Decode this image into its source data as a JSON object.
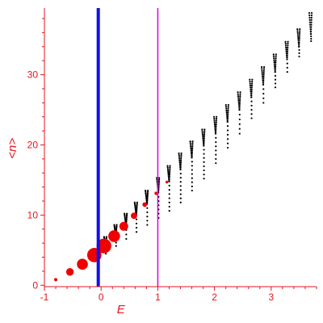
{
  "chart_data": {
    "type": "scatter",
    "xlabel": "E",
    "ylabel": "<n>",
    "xlim": [
      -1.0,
      3.8
    ],
    "ylim": [
      -0.2,
      39.5
    ],
    "x_ticks": [
      -1,
      0,
      1,
      2,
      3
    ],
    "x_tick_labels": [
      "-1",
      "0",
      "1",
      "2",
      "3"
    ],
    "y_ticks": [
      0,
      10,
      20,
      30
    ],
    "y_tick_labels": [
      "0",
      "10",
      "20",
      "30"
    ],
    "grid": false,
    "legend": "none",
    "vertical_lines": [
      {
        "x": -0.05,
        "color": "#1010e8",
        "style": "thick"
      },
      {
        "x": 1.0,
        "color": "#e000e0",
        "style": "thin"
      }
    ],
    "series": [
      {
        "marker": "filled-circle",
        "color": "#f00000",
        "points": [
          {
            "x": -0.8,
            "y": 0.8,
            "size": 1.0
          },
          {
            "x": -0.55,
            "y": 1.9,
            "size": 3.0
          },
          {
            "x": -0.33,
            "y": 3.0,
            "size": 4.6
          },
          {
            "x": -0.12,
            "y": 4.3,
            "size": 6.2
          },
          {
            "x": 0.05,
            "y": 5.6,
            "size": 6.4
          },
          {
            "x": 0.23,
            "y": 7.0,
            "size": 5.0
          },
          {
            "x": 0.4,
            "y": 8.4,
            "size": 3.6
          },
          {
            "x": 0.58,
            "y": 9.9,
            "size": 2.4
          },
          {
            "x": 0.77,
            "y": 11.5,
            "size": 1.6
          },
          {
            "x": 0.97,
            "y": 13.1,
            "size": 1.0
          },
          {
            "x": 1.16,
            "y": 14.7,
            "size": 0.7
          }
        ]
      }
    ],
    "dotted_branches": {
      "color": "#000000",
      "description": "V-shaped dotted families for successive levels",
      "levels": [
        {
          "center": 0.08,
          "mid": 5.6,
          "top": 6.9,
          "bottom": 4.5
        },
        {
          "center": 0.26,
          "mid": 7.0,
          "top": 8.6,
          "bottom": 5.6
        },
        {
          "center": 0.44,
          "mid": 8.5,
          "top": 10.2,
          "bottom": 6.6
        },
        {
          "center": 0.62,
          "mid": 10.0,
          "top": 11.8,
          "bottom": 7.6
        },
        {
          "center": 0.81,
          "mid": 11.6,
          "top": 13.5,
          "bottom": 8.6
        },
        {
          "center": 1.01,
          "mid": 13.2,
          "top": 15.3,
          "bottom": 9.6
        },
        {
          "center": 1.2,
          "mid": 14.8,
          "top": 17.0,
          "bottom": 10.6
        },
        {
          "center": 1.4,
          "mid": 16.5,
          "top": 18.8,
          "bottom": 11.8
        },
        {
          "center": 1.6,
          "mid": 18.2,
          "top": 20.5,
          "bottom": 13.5
        },
        {
          "center": 1.81,
          "mid": 19.9,
          "top": 22.2,
          "bottom": 15.2
        },
        {
          "center": 2.02,
          "mid": 21.6,
          "top": 24.0,
          "bottom": 17.4
        },
        {
          "center": 2.23,
          "mid": 23.3,
          "top": 25.7,
          "bottom": 19.6
        },
        {
          "center": 2.44,
          "mid": 25.0,
          "top": 27.5,
          "bottom": 21.6
        },
        {
          "center": 2.65,
          "mid": 26.8,
          "top": 29.3,
          "bottom": 23.8
        },
        {
          "center": 2.86,
          "mid": 28.6,
          "top": 31.1,
          "bottom": 26.0
        },
        {
          "center": 3.07,
          "mid": 30.4,
          "top": 32.9,
          "bottom": 28.2
        },
        {
          "center": 3.28,
          "mid": 32.2,
          "top": 34.7,
          "bottom": 30.4
        },
        {
          "center": 3.49,
          "mid": 34.0,
          "top": 36.5,
          "bottom": 32.6
        },
        {
          "center": 3.7,
          "mid": 35.8,
          "top": 38.8,
          "bottom": 34.8
        }
      ]
    },
    "colors": {
      "axis": "#e8141c",
      "marker": "#f00000",
      "dots": "#000000"
    }
  }
}
